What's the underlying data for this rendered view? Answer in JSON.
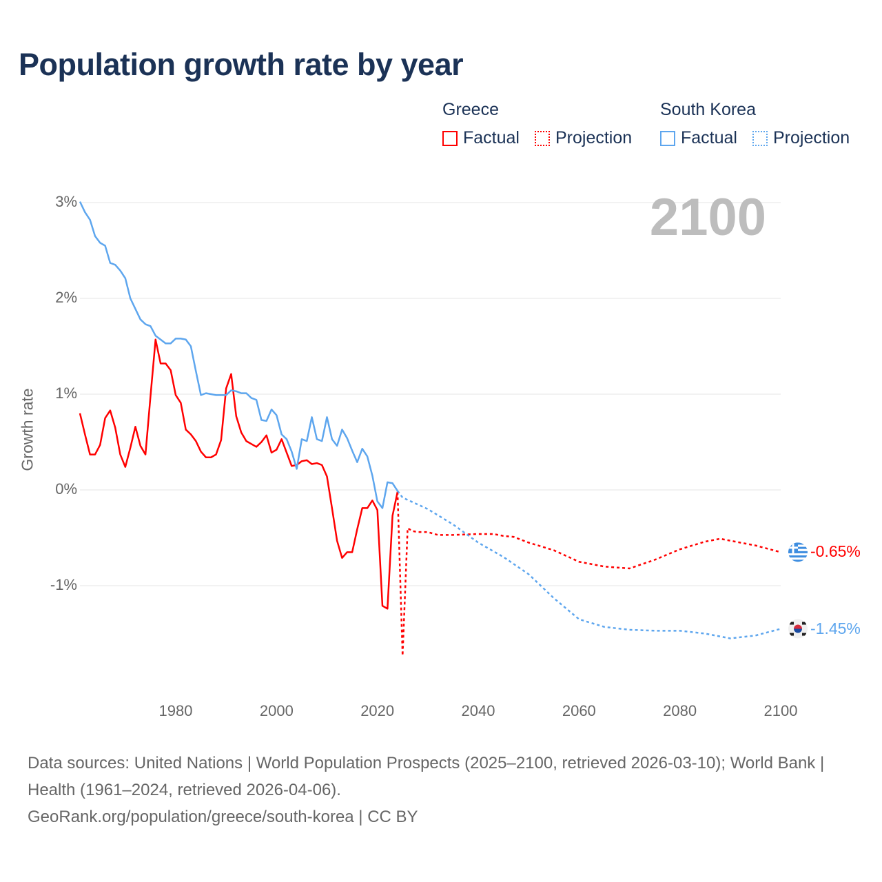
{
  "chart_data": {
    "type": "line",
    "title": "Population growth rate by year",
    "ylabel": "Growth rate",
    "xlabel": "",
    "xlim": [
      1961,
      2100
    ],
    "ylim": [
      -2,
      3
    ],
    "grid": true,
    "y_ticks": [
      {
        "v": 3,
        "label": "3%"
      },
      {
        "v": 2,
        "label": "2%"
      },
      {
        "v": 1,
        "label": "1%"
      },
      {
        "v": 0,
        "label": "0%"
      },
      {
        "v": -1,
        "label": "-1%"
      }
    ],
    "x_ticks": [
      {
        "v": 1980,
        "label": "1980"
      },
      {
        "v": 2000,
        "label": "2000"
      },
      {
        "v": 2020,
        "label": "2020"
      },
      {
        "v": 2040,
        "label": "2040"
      },
      {
        "v": 2060,
        "label": "2060"
      },
      {
        "v": 2080,
        "label": "2080"
      },
      {
        "v": 2100,
        "label": "2100"
      }
    ],
    "current_year": "2100",
    "legend": {
      "placement": "top-right",
      "groups": [
        {
          "name": "Greece",
          "factual": "Factual",
          "projection": "Projection",
          "color": "#ff0000"
        },
        {
          "name": "South Korea",
          "factual": "Factual",
          "projection": "Projection",
          "color": "#5ea6ee"
        }
      ]
    },
    "series": [
      {
        "name": "Greece",
        "color": "#ff0000",
        "end_label": "-0.65%",
        "factual": {
          "start_year": 1961,
          "values": [
            0.8,
            0.58,
            0.37,
            0.37,
            0.47,
            0.75,
            0.83,
            0.65,
            0.37,
            0.24,
            0.44,
            0.66,
            0.46,
            0.37,
            0.98,
            1.57,
            1.32,
            1.32,
            1.25,
            0.99,
            0.91,
            0.63,
            0.58,
            0.51,
            0.4,
            0.34,
            0.34,
            0.37,
            0.52,
            1.06,
            1.21,
            0.77,
            0.6,
            0.51,
            0.48,
            0.45,
            0.5,
            0.57,
            0.39,
            0.42,
            0.53,
            0.39,
            0.25,
            0.26,
            0.3,
            0.31,
            0.27,
            0.28,
            0.26,
            0.14,
            -0.19,
            -0.53,
            -0.71,
            -0.65,
            -0.65,
            -0.41,
            -0.19,
            -0.19,
            -0.11,
            -0.21,
            -1.21,
            -1.24,
            -0.27,
            -0.02
          ]
        },
        "projection": [
          [
            2025,
            -1.73
          ],
          [
            2026,
            -0.4
          ],
          [
            2027,
            -0.43
          ],
          [
            2028,
            -0.44
          ],
          [
            2030,
            -0.44
          ],
          [
            2032,
            -0.47
          ],
          [
            2035,
            -0.47
          ],
          [
            2040,
            -0.46
          ],
          [
            2043,
            -0.46
          ],
          [
            2045,
            -0.48
          ],
          [
            2047,
            -0.49
          ],
          [
            2050,
            -0.55
          ],
          [
            2055,
            -0.63
          ],
          [
            2060,
            -0.75
          ],
          [
            2065,
            -0.8
          ],
          [
            2070,
            -0.82
          ],
          [
            2075,
            -0.73
          ],
          [
            2080,
            -0.62
          ],
          [
            2085,
            -0.54
          ],
          [
            2088,
            -0.51
          ],
          [
            2090,
            -0.53
          ],
          [
            2095,
            -0.58
          ],
          [
            2100,
            -0.65
          ]
        ]
      },
      {
        "name": "South Korea",
        "color": "#5ea6ee",
        "end_label": "-1.45%",
        "factual": {
          "start_year": 1961,
          "values": [
            3.01,
            2.9,
            2.82,
            2.65,
            2.58,
            2.55,
            2.37,
            2.35,
            2.29,
            2.21,
            2.0,
            1.89,
            1.78,
            1.73,
            1.71,
            1.61,
            1.57,
            1.53,
            1.53,
            1.58,
            1.58,
            1.57,
            1.5,
            1.24,
            0.99,
            1.01,
            1.0,
            0.99,
            0.99,
            0.99,
            1.04,
            1.03,
            1.01,
            1.01,
            0.96,
            0.94,
            0.73,
            0.72,
            0.84,
            0.78,
            0.58,
            0.53,
            0.4,
            0.22,
            0.53,
            0.51,
            0.76,
            0.53,
            0.51,
            0.76,
            0.53,
            0.46,
            0.63,
            0.54,
            0.41,
            0.29,
            0.43,
            0.35,
            0.15,
            -0.12,
            -0.19,
            0.08,
            0.07,
            -0.01
          ]
        },
        "projection": [
          [
            2025,
            -0.08
          ],
          [
            2030,
            -0.2
          ],
          [
            2035,
            -0.36
          ],
          [
            2040,
            -0.55
          ],
          [
            2045,
            -0.7
          ],
          [
            2050,
            -0.88
          ],
          [
            2055,
            -1.13
          ],
          [
            2060,
            -1.35
          ],
          [
            2065,
            -1.43
          ],
          [
            2070,
            -1.46
          ],
          [
            2075,
            -1.47
          ],
          [
            2080,
            -1.47
          ],
          [
            2085,
            -1.5
          ],
          [
            2090,
            -1.55
          ],
          [
            2095,
            -1.52
          ],
          [
            2100,
            -1.45
          ]
        ]
      }
    ]
  },
  "footer": {
    "sources": "Data sources: United Nations | World Population Prospects (2025–2100, retrieved 2026-03-10); World Bank | Health (1961–2024, retrieved 2026-04-06).",
    "credit": "GeoRank.org/population/greece/south-korea | CC BY"
  }
}
